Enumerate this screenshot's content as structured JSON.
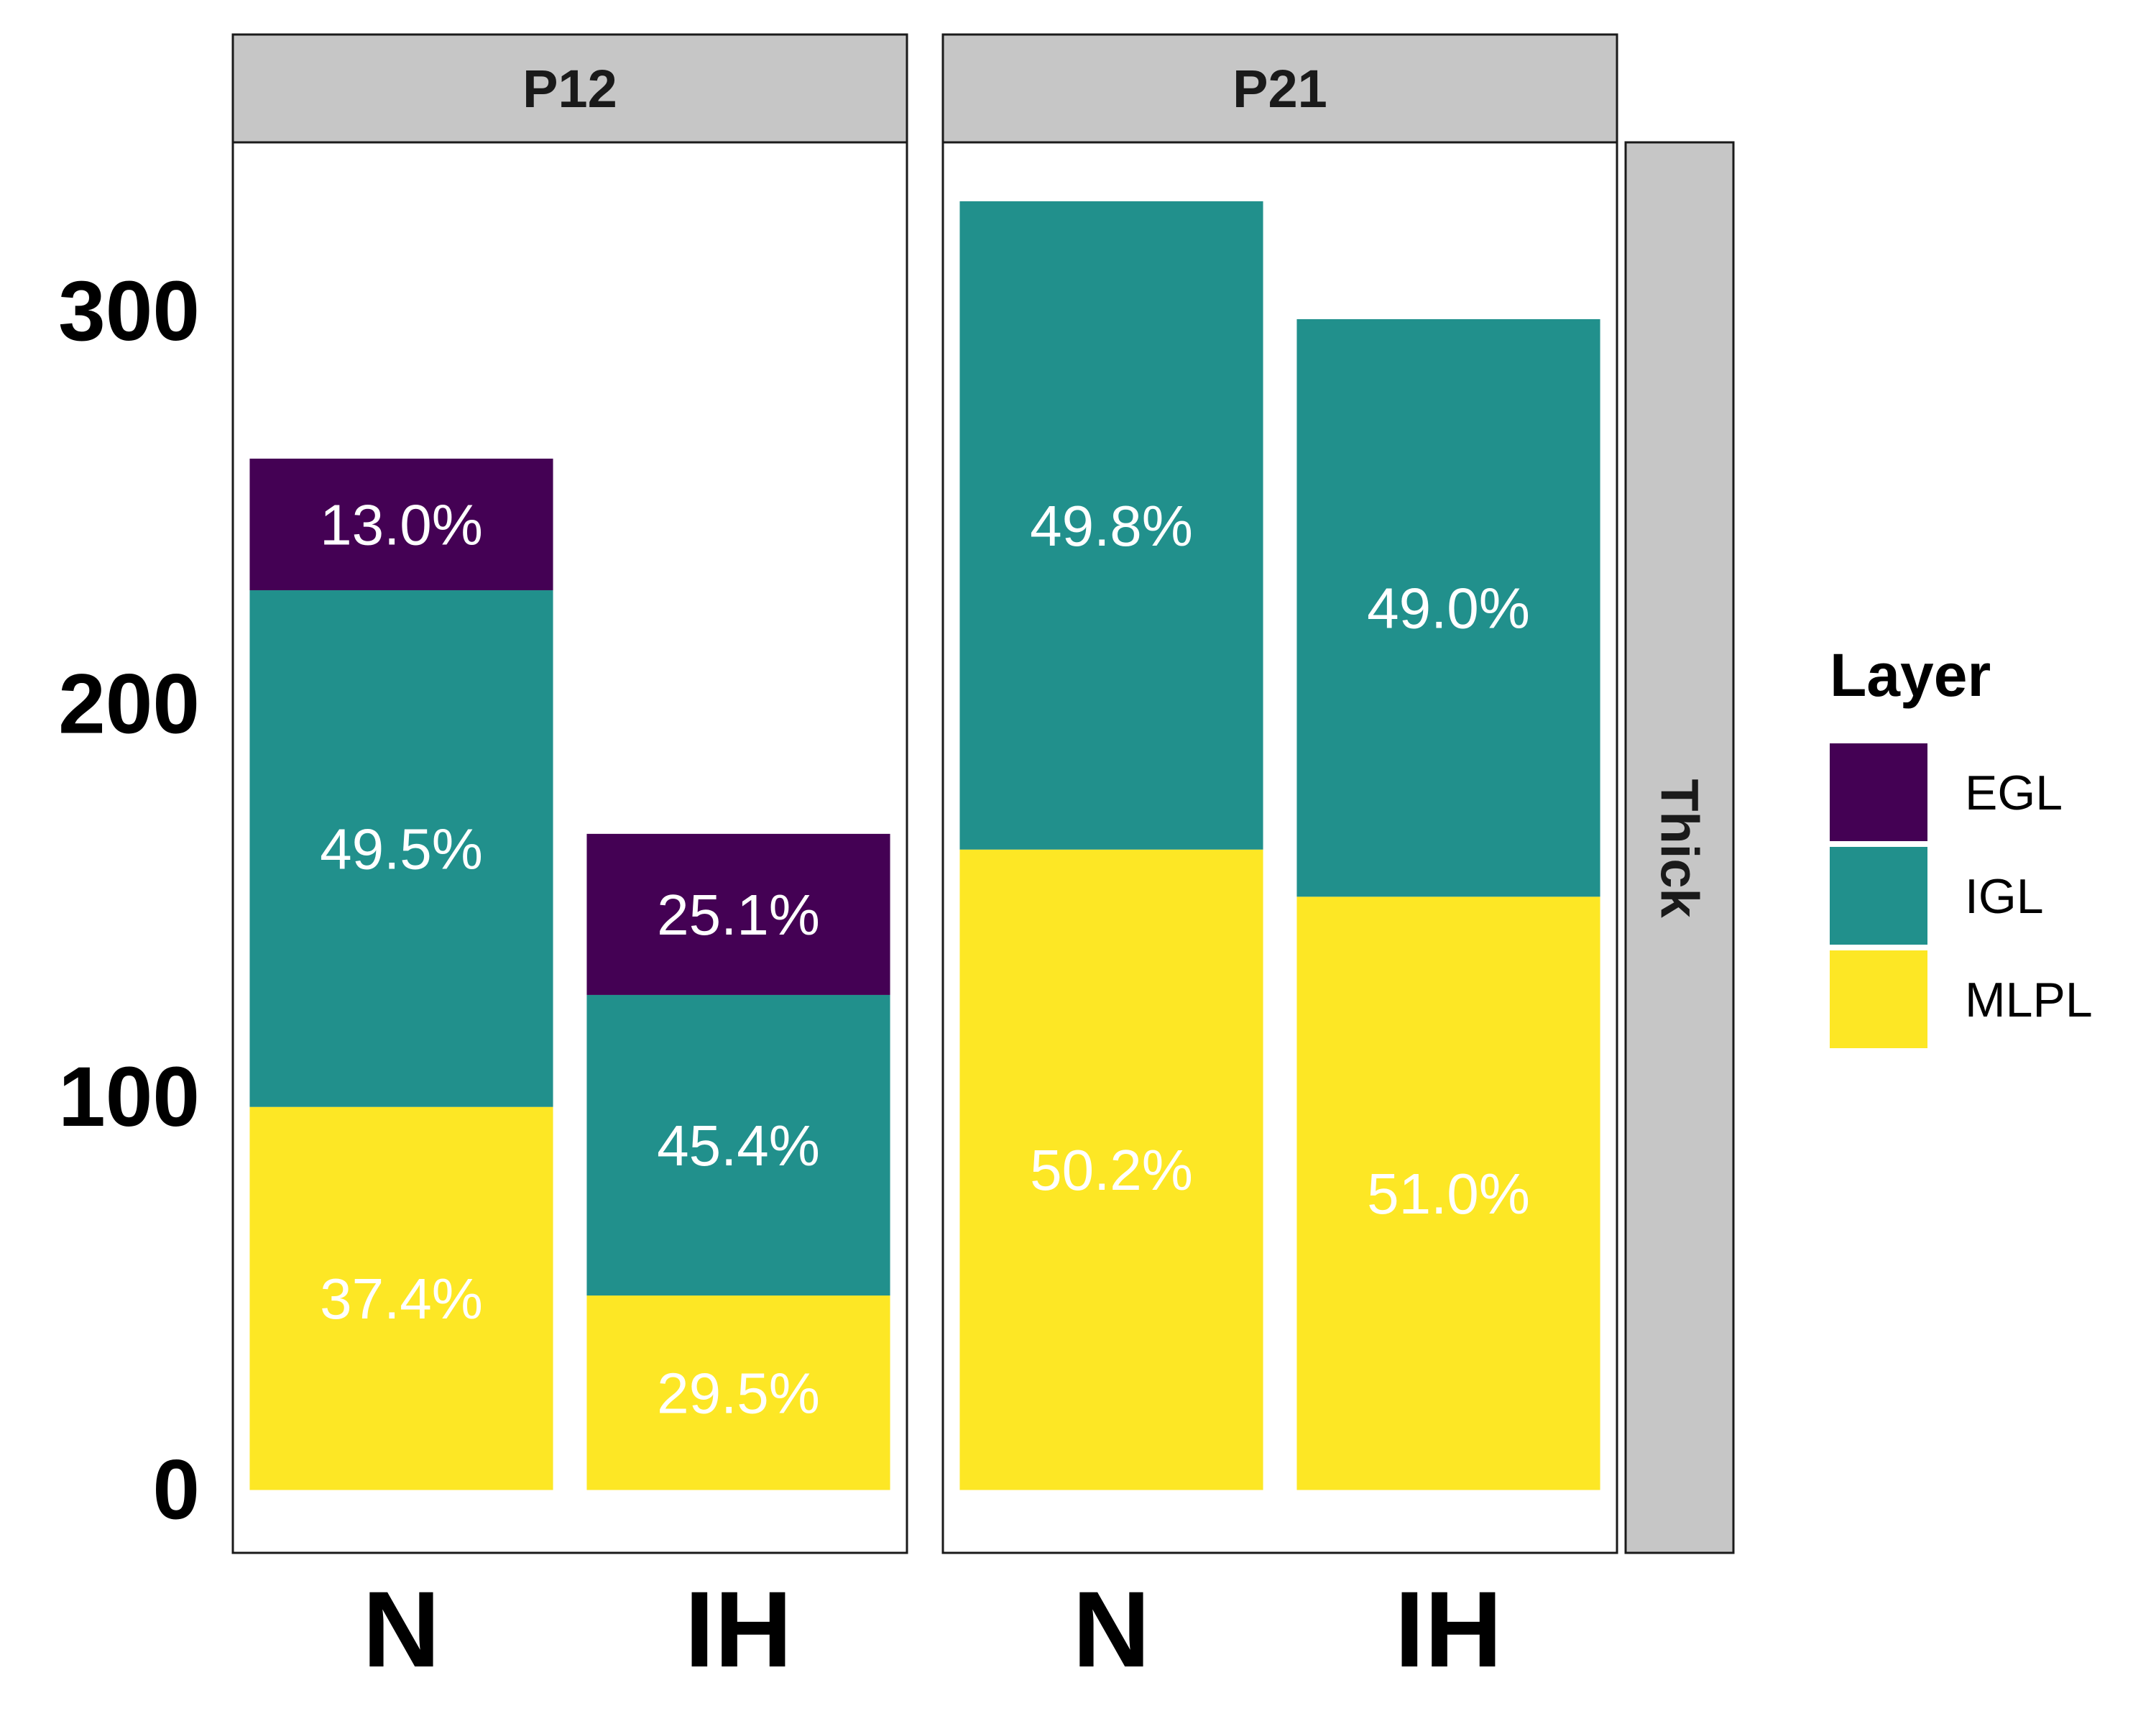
{
  "chart_data": {
    "type": "bar",
    "stacked": true,
    "facet_row_label": "Thick",
    "facets": [
      {
        "label": "P12",
        "categories": [
          "N",
          "IH"
        ],
        "series": [
          {
            "name": "MLPL",
            "values": [
              97.5,
              49.5
            ],
            "labels": [
              "37.4%",
              "29.5%"
            ]
          },
          {
            "name": "IGL",
            "values": [
              131.5,
              76.5
            ],
            "labels": [
              "49.5%",
              "45.4%"
            ]
          },
          {
            "name": "EGL",
            "values": [
              33.5,
              41.0
            ],
            "labels": [
              "13.0%",
              "25.1%"
            ]
          }
        ]
      },
      {
        "label": "P21",
        "categories": [
          "N",
          "IH"
        ],
        "series": [
          {
            "name": "MLPL",
            "values": [
              163.0,
              151.0
            ],
            "labels": [
              "50.2%",
              "51.0%"
            ]
          },
          {
            "name": "IGL",
            "values": [
              165.0,
              147.0
            ],
            "labels": [
              "49.8%",
              "49.0%"
            ]
          },
          {
            "name": "EGL",
            "values": [
              0,
              0
            ],
            "labels": [
              "",
              ""
            ]
          }
        ]
      }
    ],
    "y_ticks": [
      "0",
      "100",
      "200",
      "300"
    ],
    "ylim": [
      -16,
      343
    ],
    "legend": {
      "title": "Layer",
      "position": "right",
      "entries": [
        {
          "name": "EGL",
          "color": "#440154"
        },
        {
          "name": "IGL",
          "color": "#21908C"
        },
        {
          "name": "MLPL",
          "color": "#FDE725"
        }
      ]
    },
    "colors": {
      "EGL": "#440154",
      "IGL": "#21908C",
      "MLPL": "#FDE725"
    },
    "grid": false
  }
}
